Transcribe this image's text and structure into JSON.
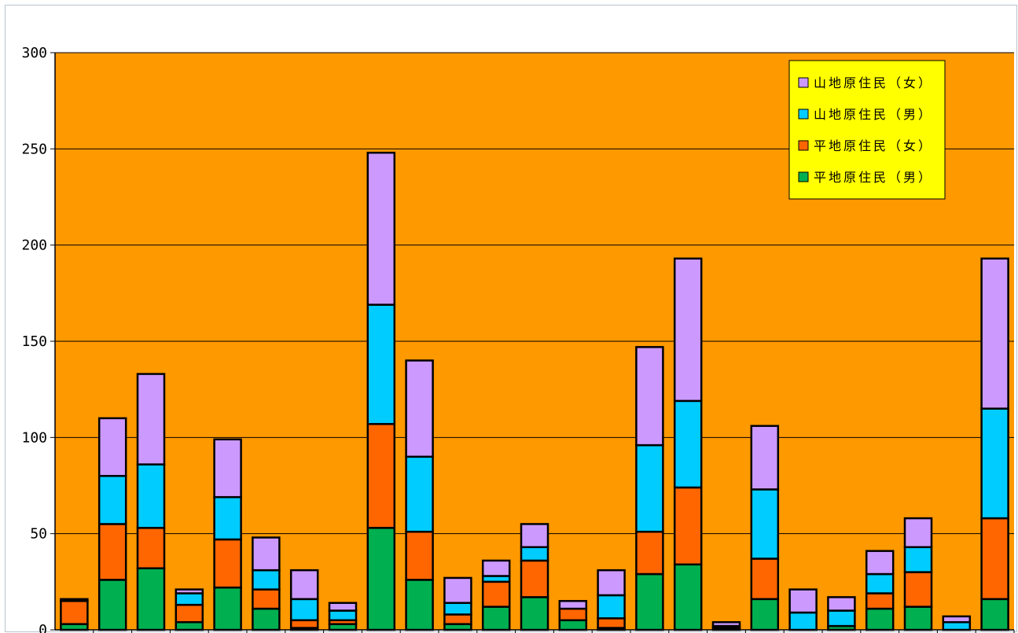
{
  "chart_data": {
    "type": "bar",
    "stacked": true,
    "ylim": [
      0,
      300
    ],
    "yticks": [
      "0",
      "50",
      "100",
      "150",
      "200",
      "250",
      "300"
    ],
    "grid": true,
    "legend_position": "top-right",
    "plot_background": "#FF9900",
    "legend_background": "#FFFF00",
    "series": [
      {
        "name": "平地原住民（男）",
        "color": "#00B050",
        "values": [
          3,
          26,
          32,
          4,
          22,
          11,
          1,
          3,
          53,
          26,
          3,
          12,
          17,
          5,
          1,
          29,
          34,
          1,
          16,
          0,
          2,
          11,
          12,
          0,
          16
        ]
      },
      {
        "name": "平地原住民（女）",
        "color": "#FF6600",
        "values": [
          12,
          29,
          21,
          9,
          25,
          10,
          4,
          2,
          54,
          25,
          5,
          13,
          19,
          6,
          5,
          22,
          40,
          1,
          21,
          0,
          0,
          8,
          18,
          0,
          42
        ]
      },
      {
        "name": "山地原住民（男）",
        "color": "#00CCFF",
        "values": [
          0,
          25,
          33,
          6,
          22,
          10,
          11,
          5,
          62,
          39,
          6,
          3,
          7,
          0,
          12,
          45,
          45,
          0,
          36,
          9,
          8,
          10,
          13,
          4,
          57
        ]
      },
      {
        "name": "山地原住民（女）",
        "color": "#CC99FF",
        "values": [
          1,
          30,
          47,
          2,
          30,
          17,
          15,
          4,
          79,
          50,
          13,
          8,
          12,
          4,
          13,
          51,
          74,
          2,
          33,
          12,
          7,
          12,
          15,
          3,
          78
        ]
      }
    ],
    "legend_order": [
      "山地原住民（女）",
      "山地原住民（男）",
      "平地原住民（女）",
      "平地原住民（男）"
    ]
  }
}
